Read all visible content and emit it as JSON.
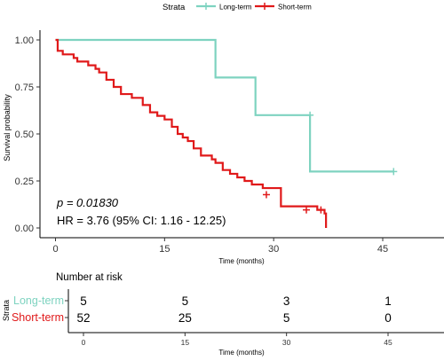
{
  "legend": {
    "title": "Strata",
    "position": "top",
    "items": [
      {
        "label": "Long-term",
        "color": "#7ED3C0"
      },
      {
        "label": "Short-term",
        "color": "#E0191A"
      }
    ]
  },
  "chart_data": {
    "type": "line",
    "step": true,
    "xlabel": "Time (months)",
    "ylabel": "Survival probability",
    "xlim": [
      0,
      48
    ],
    "ylim": [
      0,
      1
    ],
    "xticks": [
      0,
      15,
      30,
      45
    ],
    "yticks": [
      "0.00",
      "0.25",
      "0.50",
      "0.75",
      "1.00"
    ],
    "grid": false,
    "series": [
      {
        "name": "Long-term",
        "color": "#7ED3C0",
        "x": [
          0,
          22,
          22,
          27.5,
          27.5,
          35,
          35,
          46.5
        ],
        "y": [
          1.0,
          1.0,
          0.8,
          0.8,
          0.6,
          0.6,
          0.3,
          0.3
        ],
        "censor_x": [
          35,
          46.5
        ],
        "censor_y": [
          0.6,
          0.3
        ]
      },
      {
        "name": "Short-term",
        "color": "#E0191A",
        "x": [
          0,
          0.3,
          1.0,
          2.5,
          3.0,
          4.5,
          5.5,
          6.0,
          7.0,
          8.0,
          9.0,
          10.5,
          12.0,
          13.0,
          14.0,
          15.0,
          16.0,
          16.8,
          17.5,
          18.2,
          19.0,
          20.0,
          21.5,
          22.0,
          23.0,
          24.0,
          25.0,
          26.0,
          27.0,
          28.5,
          31.0,
          36.0,
          37.0,
          37.2
        ],
        "y": [
          1.0,
          0.942,
          0.923,
          0.904,
          0.885,
          0.865,
          0.846,
          0.827,
          0.788,
          0.75,
          0.712,
          0.692,
          0.654,
          0.615,
          0.596,
          0.577,
          0.538,
          0.5,
          0.481,
          0.462,
          0.423,
          0.385,
          0.365,
          0.346,
          0.308,
          0.288,
          0.269,
          0.25,
          0.231,
          0.212,
          0.115,
          0.096,
          0.077,
          0.0
        ],
        "censor_x": [
          29.0,
          34.5,
          36.5
        ],
        "censor_y": [
          0.177,
          0.096,
          0.096
        ]
      }
    ],
    "annotations": [
      {
        "text": "p = 0.01830",
        "italic": true
      },
      {
        "text": "HR = 3.76 (95% CI: 1.16 - 12.25)"
      }
    ]
  },
  "risk_table": {
    "title": "Number at risk",
    "strata_label": "Strata",
    "xlabel": "Time (months)",
    "times": [
      0,
      15,
      30,
      45
    ],
    "rows": [
      {
        "label": "Long-term",
        "color": "#7ED3C0",
        "values": [
          "5",
          "5",
          "3",
          "1"
        ]
      },
      {
        "label": "Short-term",
        "color": "#E0191A",
        "values": [
          "52",
          "25",
          "5",
          "0"
        ]
      }
    ]
  }
}
